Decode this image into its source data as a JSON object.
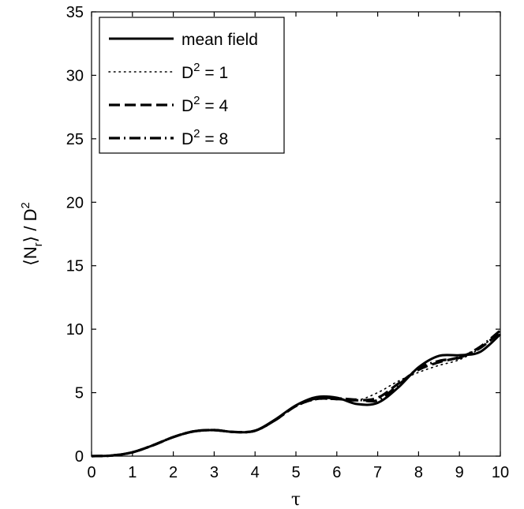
{
  "chart_data": {
    "type": "line",
    "xlabel": "τ",
    "ylabel": "⟨N_r⟩ / D^2",
    "xlim": [
      0,
      10
    ],
    "ylim": [
      0,
      35
    ],
    "xticks": [
      0,
      1,
      2,
      3,
      4,
      5,
      6,
      7,
      8,
      9,
      10
    ],
    "yticks": [
      0,
      5,
      10,
      15,
      20,
      25,
      30,
      35
    ],
    "grid": false,
    "legend_position": "top-left",
    "x": [
      0,
      0.5,
      1,
      1.5,
      2,
      2.5,
      3,
      3.5,
      4,
      4.5,
      5,
      5.5,
      6,
      6.5,
      7,
      7.5,
      8,
      8.5,
      9,
      9.5,
      10
    ],
    "series": [
      {
        "name": "mean field",
        "style": "solid",
        "values": [
          0,
          0.05,
          0.3,
          0.85,
          1.5,
          1.95,
          2.05,
          1.9,
          2.0,
          2.9,
          4.0,
          4.65,
          4.6,
          4.1,
          4.2,
          5.4,
          7.0,
          7.9,
          7.95,
          8.2,
          9.6
        ]
      },
      {
        "name": "D^2 = 1",
        "style": "dotted",
        "values": [
          0,
          0.05,
          0.3,
          0.85,
          1.5,
          1.95,
          2.05,
          1.9,
          2.0,
          2.85,
          3.9,
          4.45,
          4.45,
          4.4,
          5.0,
          5.9,
          6.6,
          7.15,
          7.6,
          8.5,
          9.9
        ]
      },
      {
        "name": "D^2 = 4",
        "style": "dashed",
        "values": [
          0,
          0.05,
          0.3,
          0.85,
          1.5,
          1.95,
          2.05,
          1.9,
          2.0,
          2.85,
          3.95,
          4.5,
          4.5,
          4.4,
          4.6,
          5.7,
          6.8,
          7.4,
          7.8,
          8.5,
          9.8
        ]
      },
      {
        "name": "D^2 = 8",
        "style": "dashdot",
        "values": [
          0,
          0.05,
          0.3,
          0.85,
          1.5,
          1.95,
          2.05,
          1.9,
          2.0,
          2.85,
          3.95,
          4.55,
          4.55,
          4.45,
          4.4,
          5.6,
          6.9,
          7.5,
          7.75,
          8.6,
          9.9
        ]
      }
    ]
  }
}
